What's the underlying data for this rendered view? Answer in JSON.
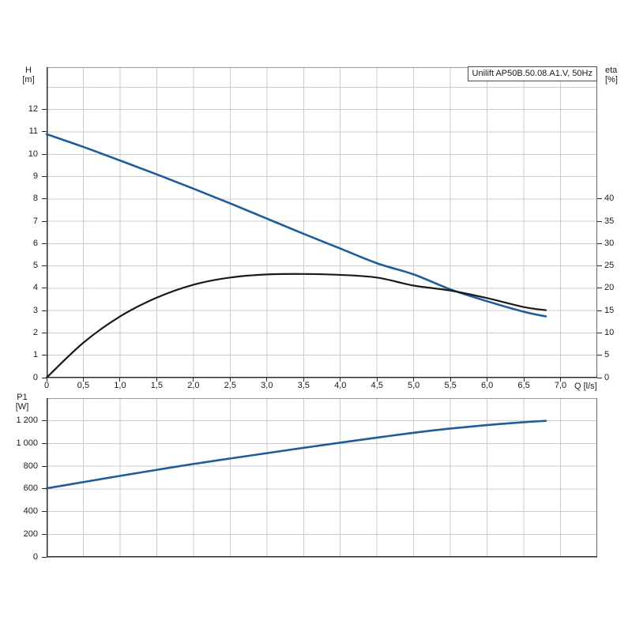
{
  "page": {
    "background": "#ffffff"
  },
  "colors": {
    "grid": "#cccccc",
    "frame_light": "#999999",
    "frame_dark": "#2b2b2b",
    "text": "#1a1a1a",
    "curve_blue": "#1f5c99",
    "curve_black": "#1a1a1a",
    "title_border": "#4d4d4d"
  },
  "chart_data": [
    {
      "type": "line",
      "title": "Unilift AP50B.50.08.A1.V, 50Hz",
      "legend_position": "none",
      "grid": true,
      "x_axis": {
        "label": "Q [l/s]",
        "range": [
          0,
          7.5
        ],
        "grid_step": 0.5,
        "tick_values": [
          0,
          0.5,
          1,
          1.5,
          2,
          2.5,
          3,
          3.5,
          4,
          4.5,
          5,
          5.5,
          6,
          6.5,
          7
        ],
        "tick_labels": [
          "0",
          "0,5",
          "1,0",
          "1,5",
          "2,0",
          "2,5",
          "3,0",
          "3,5",
          "4,0",
          "4,5",
          "5,0",
          "5,5",
          "6,0",
          "6,5",
          "7,0"
        ]
      },
      "y_axis": {
        "label_line1": "H",
        "label_line2": "[m]",
        "range": [
          0,
          13.9
        ],
        "tick_values": [
          0,
          1,
          2,
          3,
          4,
          5,
          6,
          7,
          8,
          9,
          10,
          11,
          12
        ],
        "tick_labels": [
          "0",
          "1",
          "2",
          "3",
          "4",
          "5",
          "6",
          "7",
          "8",
          "9",
          "10",
          "11",
          "12"
        ],
        "grid_values": [
          1,
          2,
          3,
          4,
          5,
          6,
          7,
          8,
          9,
          10,
          11,
          12,
          13
        ]
      },
      "y2_axis": {
        "label_line1": "eta",
        "label_line2": "[%]",
        "range": [
          0,
          69.5
        ],
        "tick_values": [
          0,
          5,
          10,
          15,
          20,
          25,
          30,
          35,
          40
        ],
        "tick_labels": [
          "0",
          "5",
          "10",
          "15",
          "20",
          "25",
          "30",
          "35",
          "40"
        ]
      },
      "series": [
        {
          "name": "head-curve",
          "axis": "y",
          "color": "#1f5c99",
          "width": 2.6,
          "points": [
            [
              0,
              10.9
            ],
            [
              0.5,
              10.33
            ],
            [
              1,
              9.72
            ],
            [
              1.5,
              9.1
            ],
            [
              2,
              8.46
            ],
            [
              2.5,
              7.8
            ],
            [
              3,
              7.12
            ],
            [
              3.5,
              6.44
            ],
            [
              4,
              5.78
            ],
            [
              4.5,
              5.12
            ],
            [
              5,
              4.62
            ],
            [
              5.5,
              3.95
            ],
            [
              6,
              3.42
            ],
            [
              6.5,
              2.95
            ],
            [
              6.8,
              2.74
            ]
          ]
        },
        {
          "name": "efficiency-curve",
          "axis": "y2",
          "color": "#1a1a1a",
          "width": 2.2,
          "points": [
            [
              0,
              0
            ],
            [
              0.5,
              7.8
            ],
            [
              1,
              13.7
            ],
            [
              1.5,
              17.9
            ],
            [
              2,
              20.8
            ],
            [
              2.5,
              22.4
            ],
            [
              3,
              23.1
            ],
            [
              3.5,
              23.2
            ],
            [
              4,
              23.0
            ],
            [
              4.5,
              22.4
            ],
            [
              5,
              20.6
            ],
            [
              5.5,
              19.5
            ],
            [
              6,
              17.8
            ],
            [
              6.5,
              15.8
            ],
            [
              6.8,
              15.1
            ]
          ]
        }
      ]
    },
    {
      "type": "line",
      "grid": true,
      "x_axis": {
        "range": [
          0,
          7.5
        ],
        "grid_step": 0.5,
        "tick_values": [],
        "tick_labels": []
      },
      "y_axis": {
        "label_line1": "P1",
        "label_line2": "[W]",
        "range": [
          0,
          1400
        ],
        "tick_values": [
          0,
          200,
          400,
          600,
          800,
          1000,
          1200
        ],
        "tick_labels": [
          "0",
          "200",
          "400",
          "600",
          "800",
          "1 000",
          "1 200"
        ],
        "grid_values": [
          200,
          400,
          600,
          800,
          1000,
          1200
        ]
      },
      "series": [
        {
          "name": "power-curve",
          "axis": "y",
          "color": "#1f5c99",
          "width": 2.6,
          "points": [
            [
              0,
              605
            ],
            [
              0.5,
              660
            ],
            [
              1,
              715
            ],
            [
              1.5,
              768
            ],
            [
              2,
              820
            ],
            [
              2.5,
              868
            ],
            [
              3,
              915
            ],
            [
              3.5,
              962
            ],
            [
              4,
              1008
            ],
            [
              4.5,
              1052
            ],
            [
              5,
              1095
            ],
            [
              5.5,
              1132
            ],
            [
              6,
              1163
            ],
            [
              6.5,
              1188
            ],
            [
              6.8,
              1200
            ]
          ]
        }
      ]
    }
  ]
}
